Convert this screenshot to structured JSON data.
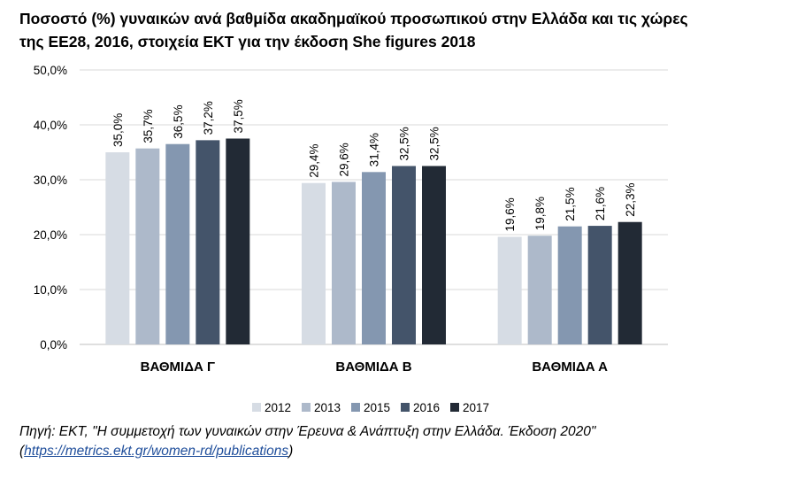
{
  "title": {
    "line1": "Ποσοστό (%) γυναικών ανά βαθμίδα ακαδημαϊκού προσωπικού στην Ελλάδα και τις χώρες",
    "line2": "της ΕΕ28, 2016, στοιχεία ΕΚΤ για την έκδοση She figures 2018"
  },
  "chart_data": {
    "type": "bar",
    "categories": [
      "ΒΑΘΜΙΔΑ Γ",
      "ΒΑΘΜΙΔΑ Β",
      "ΒΑΘΜΙΔΑ Α"
    ],
    "series": [
      {
        "name": "2012",
        "values": [
          35.0,
          29.4,
          19.6
        ],
        "labels": [
          "35,0%",
          "29,4%",
          "19,6%"
        ]
      },
      {
        "name": "2013",
        "values": [
          35.7,
          29.6,
          19.8
        ],
        "labels": [
          "35,7%",
          "29,6%",
          "19,8%"
        ]
      },
      {
        "name": "2015",
        "values": [
          36.5,
          31.4,
          21.5
        ],
        "labels": [
          "36,5%",
          "31,4%",
          "21,5%"
        ]
      },
      {
        "name": "2016",
        "values": [
          37.2,
          32.5,
          21.6
        ],
        "labels": [
          "37,2%",
          "32,5%",
          "21,6%"
        ]
      },
      {
        "name": "2017",
        "values": [
          37.5,
          32.5,
          22.3
        ],
        "labels": [
          "37,5%",
          "32,5%",
          "22,3%"
        ]
      }
    ],
    "colors": [
      "#d6dce4",
      "#adb9ca",
      "#8497b0",
      "#44546a",
      "#222a35"
    ],
    "ylim": [
      0,
      50
    ],
    "yticks": [
      0,
      10,
      20,
      30,
      40,
      50
    ],
    "ytick_labels": [
      "0,0%",
      "10,0%",
      "20,0%",
      "30,0%",
      "40,0%",
      "50,0%"
    ],
    "grid": true,
    "legend_position": "bottom",
    "xlabel": "",
    "ylabel": ""
  },
  "source": {
    "text": "Πηγή: ΕΚΤ, \"Η συμμετοχή των γυναικών στην Έρευνα & Ανάπτυξη στην Ελλάδα. Έκδοση 2020\"",
    "link_open": "(",
    "link": "https://metrics.ekt.gr/women-rd/publications",
    "link_close": ")"
  }
}
